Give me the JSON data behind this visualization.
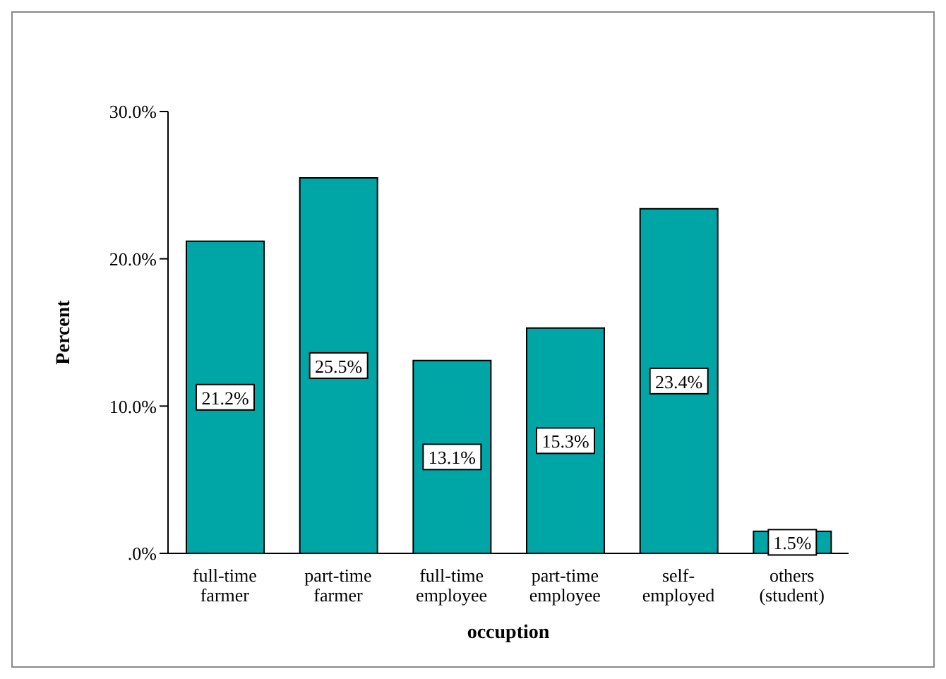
{
  "chart_data": {
    "type": "bar",
    "xlabel": "occuption",
    "ylabel": "Percent",
    "categories": [
      "full-time farmer",
      "part-time farmer",
      "full-time employee",
      "part-time employee",
      "self-employed",
      "others (student)"
    ],
    "values": [
      21.2,
      25.5,
      13.1,
      15.3,
      23.4,
      1.5
    ],
    "value_labels": [
      "21.2%",
      "25.5%",
      "13.1%",
      "15.3%",
      "23.4%",
      "1.5%"
    ],
    "color": "#00a5a5",
    "ylim": [
      0,
      30
    ],
    "yticks": [
      {
        "value": 0,
        "label": ".0%"
      },
      {
        "value": 10,
        "label": "10.0%"
      },
      {
        "value": 20,
        "label": "20.0%"
      },
      {
        "value": 30,
        "label": "30.0%"
      }
    ],
    "grid": false,
    "legend": false
  }
}
